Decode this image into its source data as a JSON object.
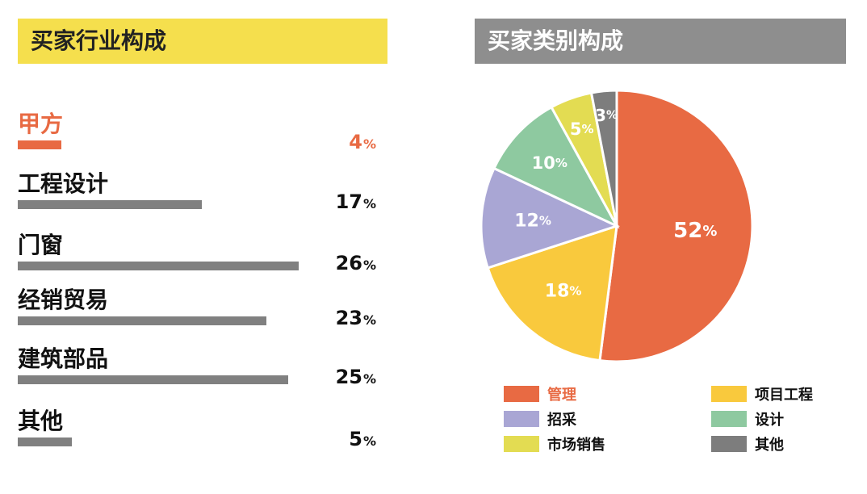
{
  "left_panel": {
    "title": "买家行业构成"
  },
  "right_panel": {
    "title": "买家类别构成"
  },
  "chart_data": [
    {
      "type": "bar",
      "title": "买家行业构成",
      "orientation": "horizontal",
      "categories": [
        "甲方",
        "工程设计",
        "门窗",
        "经销贸易",
        "建筑部品",
        "其他"
      ],
      "values": [
        4,
        17,
        26,
        23,
        25,
        5
      ],
      "value_labels": [
        "4",
        "17",
        "26",
        "23",
        "25",
        "5"
      ],
      "unit": "%",
      "highlight_index": 0,
      "colors": {
        "bar": "#808080",
        "highlight": "#e86a43"
      }
    },
    {
      "type": "pie",
      "title": "买家类别构成",
      "categories": [
        "管理",
        "项目工程",
        "招采",
        "设计",
        "市场销售",
        "其他"
      ],
      "values": [
        52,
        18,
        12,
        10,
        5,
        3
      ],
      "value_labels": [
        "52",
        "18",
        "12",
        "10",
        "5",
        "3"
      ],
      "unit": "%",
      "colors": [
        "#e86a43",
        "#f9c93d",
        "#a9a6d4",
        "#8ec9a0",
        "#e3dc52",
        "#7d7d7d"
      ],
      "legend_position": "bottom"
    }
  ]
}
